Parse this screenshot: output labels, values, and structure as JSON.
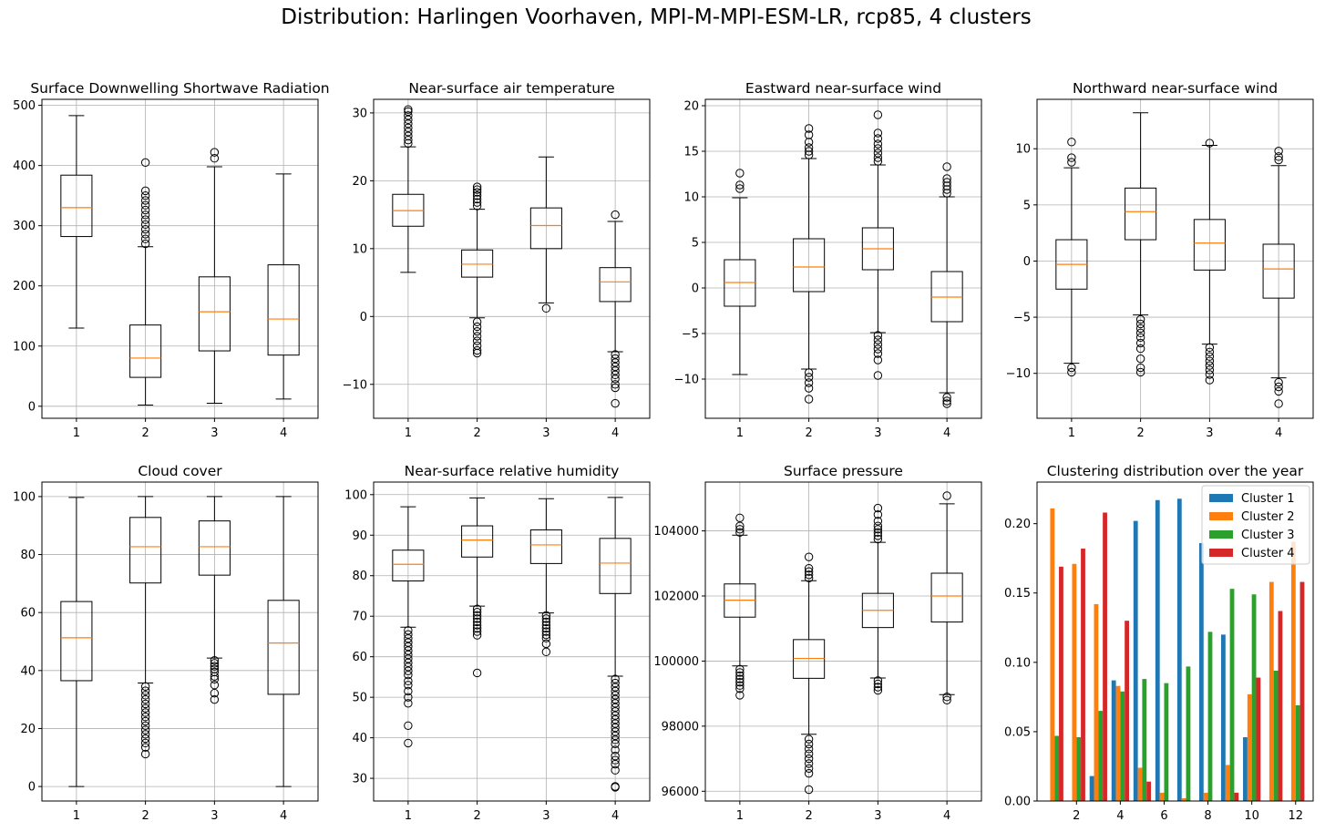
{
  "suptitle": "Distribution: Harlingen Voorhaven, MPI-M-MPI-ESM-LR, rcp85, 4 clusters",
  "colors": {
    "box": "#000000",
    "median": "#ff7f0e",
    "grid": "#b0b0b0",
    "cluster_1": "#1f77b4",
    "cluster_2": "#ff7f0e",
    "cluster_3": "#2ca02c",
    "cluster_4": "#d62728"
  },
  "chart_data": [
    {
      "type": "box",
      "title": "Surface Downwelling Shortwave Radiation",
      "categories": [
        "1",
        "2",
        "3",
        "4"
      ],
      "ylim": [
        -20,
        510
      ],
      "yticks": [
        0,
        100,
        200,
        300,
        400,
        500
      ],
      "ytick_labels": [
        "0",
        "100",
        "200",
        "300",
        "400",
        "500"
      ],
      "grid": true,
      "boxes": [
        {
          "whisker_low": 130,
          "q1": 282,
          "median": 330,
          "q3": 384,
          "whisker_high": 483,
          "outliers": []
        },
        {
          "whisker_low": 2,
          "q1": 48,
          "median": 80,
          "q3": 135,
          "whisker_high": 265,
          "outliers": [
            270,
            278,
            286,
            294,
            302,
            310,
            318,
            326,
            334,
            342,
            350,
            358,
            405
          ]
        },
        {
          "whisker_low": 5,
          "q1": 92,
          "median": 157,
          "q3": 215,
          "whisker_high": 398,
          "outliers": [
            412,
            422
          ]
        },
        {
          "whisker_low": 12,
          "q1": 85,
          "median": 145,
          "q3": 235,
          "whisker_high": 386,
          "outliers": []
        }
      ]
    },
    {
      "type": "box",
      "title": "Near-surface air temperature",
      "categories": [
        "1",
        "2",
        "3",
        "4"
      ],
      "ylim": [
        -15,
        32
      ],
      "yticks": [
        -10,
        0,
        10,
        20,
        30
      ],
      "ytick_labels": [
        "−10",
        "0",
        "10",
        "20",
        "30"
      ],
      "grid": true,
      "boxes": [
        {
          "whisker_low": 6.5,
          "q1": 13.3,
          "median": 15.6,
          "q3": 18.0,
          "whisker_high": 25.0,
          "outliers": [
            25.5,
            26.0,
            26.6,
            27.2,
            27.8,
            28.4,
            29.0,
            29.6,
            30.2,
            30.5
          ]
        },
        {
          "whisker_low": -0.2,
          "q1": 5.8,
          "median": 7.7,
          "q3": 9.8,
          "whisker_high": 15.8,
          "outliers": [
            -0.8,
            -1.5,
            -2.2,
            -2.9,
            -3.6,
            -4.3,
            -5.0,
            -5.4,
            16.3,
            16.8,
            17.3,
            17.8,
            18.3,
            18.7,
            19.1
          ]
        },
        {
          "whisker_low": 2.0,
          "q1": 10.0,
          "median": 13.4,
          "q3": 16.0,
          "whisker_high": 23.5,
          "outliers": [
            1.2
          ]
        },
        {
          "whisker_low": -5.2,
          "q1": 2.2,
          "median": 5.1,
          "q3": 7.2,
          "whisker_high": 14.0,
          "outliers": [
            -5.6,
            -6.2,
            -6.8,
            -7.4,
            -8.0,
            -8.6,
            -9.2,
            -10.0,
            -10.5,
            -12.8,
            15.0
          ]
        }
      ]
    },
    {
      "type": "box",
      "title": "Eastward near-surface wind",
      "categories": [
        "1",
        "2",
        "3",
        "4"
      ],
      "ylim": [
        -14.3,
        20.7
      ],
      "yticks": [
        -10,
        -5,
        0,
        5,
        10,
        15,
        20
      ],
      "ytick_labels": [
        "−10",
        "−5",
        "0",
        "5",
        "10",
        "15",
        "20"
      ],
      "grid": true,
      "boxes": [
        {
          "whisker_low": -9.5,
          "q1": -2.0,
          "median": 0.6,
          "q3": 3.1,
          "whisker_high": 9.9,
          "outliers": [
            10.9,
            11.3,
            12.6
          ]
        },
        {
          "whisker_low": -8.9,
          "q1": -0.4,
          "median": 2.3,
          "q3": 5.4,
          "whisker_high": 14.2,
          "outliers": [
            -9.3,
            -9.8,
            -10.4,
            -11.0,
            -12.2,
            14.6,
            15.0,
            15.4,
            16.0,
            16.8,
            17.5
          ]
        },
        {
          "whisker_low": -4.9,
          "q1": 2.0,
          "median": 4.3,
          "q3": 6.6,
          "whisker_high": 13.5,
          "outliers": [
            -5.2,
            -5.7,
            -6.2,
            -6.7,
            -7.2,
            -7.9,
            -9.6,
            13.9,
            14.3,
            14.8,
            15.3,
            15.8,
            16.4,
            17.0,
            19.0
          ]
        },
        {
          "whisker_low": -11.5,
          "q1": -3.7,
          "median": -1.0,
          "q3": 1.8,
          "whisker_high": 10.0,
          "outliers": [
            -12.0,
            -12.4,
            -12.7,
            10.4,
            10.8,
            11.2,
            11.6,
            12.0,
            13.3
          ]
        }
      ]
    },
    {
      "type": "box",
      "title": "Northward near-surface wind",
      "categories": [
        "1",
        "2",
        "3",
        "4"
      ],
      "ylim": [
        -14,
        14.4
      ],
      "yticks": [
        -10,
        -5,
        0,
        5,
        10
      ],
      "ytick_labels": [
        "−10",
        "−5",
        "0",
        "5",
        "10"
      ],
      "grid": true,
      "boxes": [
        {
          "whisker_low": -9.1,
          "q1": -2.5,
          "median": -0.3,
          "q3": 1.9,
          "whisker_high": 8.3,
          "outliers": [
            -9.5,
            -9.9,
            8.8,
            9.2,
            10.6
          ]
        },
        {
          "whisker_low": -4.8,
          "q1": 1.9,
          "median": 4.4,
          "q3": 6.5,
          "whisker_high": 13.2,
          "outliers": [
            -5.2,
            -5.6,
            -6.0,
            -6.4,
            -6.8,
            -7.3,
            -7.8,
            -8.7,
            -9.5,
            -9.9
          ]
        },
        {
          "whisker_low": -7.4,
          "q1": -0.8,
          "median": 1.6,
          "q3": 3.7,
          "whisker_high": 10.3,
          "outliers": [
            -7.7,
            -8.1,
            -8.5,
            -8.9,
            -9.3,
            -9.7,
            -10.1,
            -10.6,
            10.5
          ]
        },
        {
          "whisker_low": -10.4,
          "q1": -3.3,
          "median": -0.7,
          "q3": 1.5,
          "whisker_high": 8.5,
          "outliers": [
            -10.8,
            -11.2,
            -11.6,
            -12.7,
            9.0,
            9.3,
            9.8
          ]
        }
      ]
    },
    {
      "type": "box",
      "title": "Cloud cover",
      "categories": [
        "1",
        "2",
        "3",
        "4"
      ],
      "ylim": [
        -5,
        105
      ],
      "yticks": [
        0,
        20,
        40,
        60,
        80,
        100
      ],
      "ytick_labels": [
        "0",
        "20",
        "40",
        "60",
        "80",
        "100"
      ],
      "grid": true,
      "boxes": [
        {
          "whisker_low": 0,
          "q1": 36.5,
          "median": 51.3,
          "q3": 63.8,
          "whisker_high": 99.7,
          "outliers": []
        },
        {
          "whisker_low": 35.7,
          "q1": 70.2,
          "median": 82.7,
          "q3": 92.8,
          "whisker_high": 100,
          "outliers": [
            34.5,
            33.0,
            31.5,
            30.0,
            28.5,
            27.0,
            25.5,
            24.0,
            22.5,
            21.0,
            19.5,
            18.0,
            16.5,
            15.0,
            13.5,
            11.2
          ]
        },
        {
          "whisker_low": 44.3,
          "q1": 72.9,
          "median": 82.7,
          "q3": 91.6,
          "whisker_high": 100,
          "outliers": [
            43.5,
            42.5,
            41.5,
            40.5,
            39.5,
            38.0,
            37.0,
            35.0,
            32.2,
            30.0
          ]
        },
        {
          "whisker_low": 0,
          "q1": 31.8,
          "median": 49.5,
          "q3": 64.2,
          "whisker_high": 100,
          "outliers": []
        }
      ]
    },
    {
      "type": "box",
      "title": "Near-surface relative humidity",
      "categories": [
        "1",
        "2",
        "3",
        "4"
      ],
      "ylim": [
        24.4,
        103.1
      ],
      "yticks": [
        30,
        40,
        50,
        60,
        70,
        80,
        90,
        100
      ],
      "ytick_labels": [
        "30",
        "40",
        "50",
        "60",
        "70",
        "80",
        "90",
        "100"
      ],
      "grid": true,
      "boxes": [
        {
          "whisker_low": 67.3,
          "q1": 78.7,
          "median": 82.8,
          "q3": 86.3,
          "whisker_high": 97.0,
          "outliers": [
            66.5,
            65.5,
            64.5,
            63.5,
            62.5,
            61.5,
            60.5,
            59.5,
            58.5,
            57.5,
            56.5,
            55.5,
            54.0,
            53.0,
            51.5,
            50.0,
            48.5,
            43.0,
            38.7
          ]
        },
        {
          "whisker_low": 72.5,
          "q1": 84.6,
          "median": 88.8,
          "q3": 92.3,
          "whisker_high": 99.2,
          "outliers": [
            71.8,
            71.0,
            70.2,
            69.4,
            68.6,
            67.8,
            67.0,
            66.2,
            65.3,
            56.0
          ]
        },
        {
          "whisker_low": 70.8,
          "q1": 83.0,
          "median": 87.6,
          "q3": 91.3,
          "whisker_high": 99.0,
          "outliers": [
            70.2,
            69.4,
            68.6,
            67.8,
            67.0,
            66.2,
            65.4,
            64.6,
            63.2,
            61.2
          ]
        },
        {
          "whisker_low": 55.2,
          "q1": 75.6,
          "median": 83.1,
          "q3": 89.2,
          "whisker_high": 99.3,
          "outliers": [
            54.5,
            53.5,
            52.5,
            51.5,
            50.5,
            49.5,
            48.5,
            47.5,
            46.5,
            45.5,
            44.5,
            43.5,
            42.5,
            41.5,
            40.5,
            39.5,
            38.5,
            37.0,
            35.5,
            34.5,
            33.5,
            32.0,
            28.0,
            27.8
          ]
        }
      ]
    },
    {
      "type": "box",
      "title": "Surface pressure",
      "categories": [
        "1",
        "2",
        "3",
        "4"
      ],
      "ylim": [
        95700,
        105500
      ],
      "yticks": [
        96000,
        98000,
        100000,
        102000,
        104000
      ],
      "ytick_labels": [
        "96000",
        "98000",
        "100000",
        "102000",
        "104000"
      ],
      "grid": true,
      "boxes": [
        {
          "whisker_low": 99850,
          "q1": 101350,
          "median": 101870,
          "q3": 102370,
          "whisker_high": 103870,
          "outliers": [
            99750,
            99650,
            99550,
            99450,
            99350,
            99250,
            99150,
            98950,
            103950,
            104050,
            104150,
            104400
          ]
        },
        {
          "whisker_low": 97750,
          "q1": 99470,
          "median": 100080,
          "q3": 100660,
          "whisker_high": 102470,
          "outliers": [
            97600,
            97450,
            97300,
            97150,
            97000,
            96850,
            96700,
            96550,
            96050,
            102550,
            102650,
            102750,
            102850,
            103200
          ]
        },
        {
          "whisker_low": 99480,
          "q1": 101030,
          "median": 101560,
          "q3": 102080,
          "whisker_high": 103650,
          "outliers": [
            99400,
            99300,
            99200,
            99100,
            103750,
            103850,
            103950,
            104050,
            104150,
            104300,
            104500,
            104700
          ]
        },
        {
          "whisker_low": 98970,
          "q1": 101200,
          "median": 102000,
          "q3": 102700,
          "whisker_high": 104830,
          "outliers": [
            98900,
            98800,
            105080
          ]
        }
      ]
    },
    {
      "type": "bar",
      "title": "Clustering distribution over the year",
      "x": [
        1,
        2,
        3,
        4,
        5,
        6,
        7,
        8,
        9,
        10,
        11,
        12
      ],
      "xlim": [
        0.2,
        12.8
      ],
      "xticks": [
        2,
        4,
        6,
        8,
        10,
        12
      ],
      "xtick_labels": [
        "2",
        "4",
        "6",
        "8",
        "10",
        "12"
      ],
      "ylim": [
        0,
        0.23
      ],
      "yticks": [
        0,
        0.05,
        0.1,
        0.15,
        0.2
      ],
      "ytick_labels": [
        "0.00",
        "0.05",
        "0.10",
        "0.15",
        "0.20"
      ],
      "grid": false,
      "legend_position": "top-right",
      "series": [
        {
          "name": "Cluster 1",
          "color_key": "cluster_1",
          "values": [
            0,
            0,
            0.018,
            0.087,
            0.202,
            0.217,
            0.218,
            0.186,
            0.12,
            0.046,
            0,
            0
          ]
        },
        {
          "name": "Cluster 2",
          "color_key": "cluster_2",
          "values": [
            0.211,
            0.171,
            0.142,
            0.083,
            0.024,
            0.006,
            0.002,
            0.006,
            0.026,
            0.077,
            0.158,
            0.187
          ]
        },
        {
          "name": "Cluster 3",
          "color_key": "cluster_3",
          "values": [
            0.047,
            0.046,
            0.065,
            0.079,
            0.088,
            0.085,
            0.097,
            0.122,
            0.153,
            0.149,
            0.094,
            0.069
          ]
        },
        {
          "name": "Cluster 4",
          "color_key": "cluster_4",
          "values": [
            0.169,
            0.182,
            0.208,
            0.13,
            0.014,
            0,
            0,
            0,
            0.006,
            0.089,
            0.137,
            0.158
          ]
        }
      ]
    }
  ]
}
